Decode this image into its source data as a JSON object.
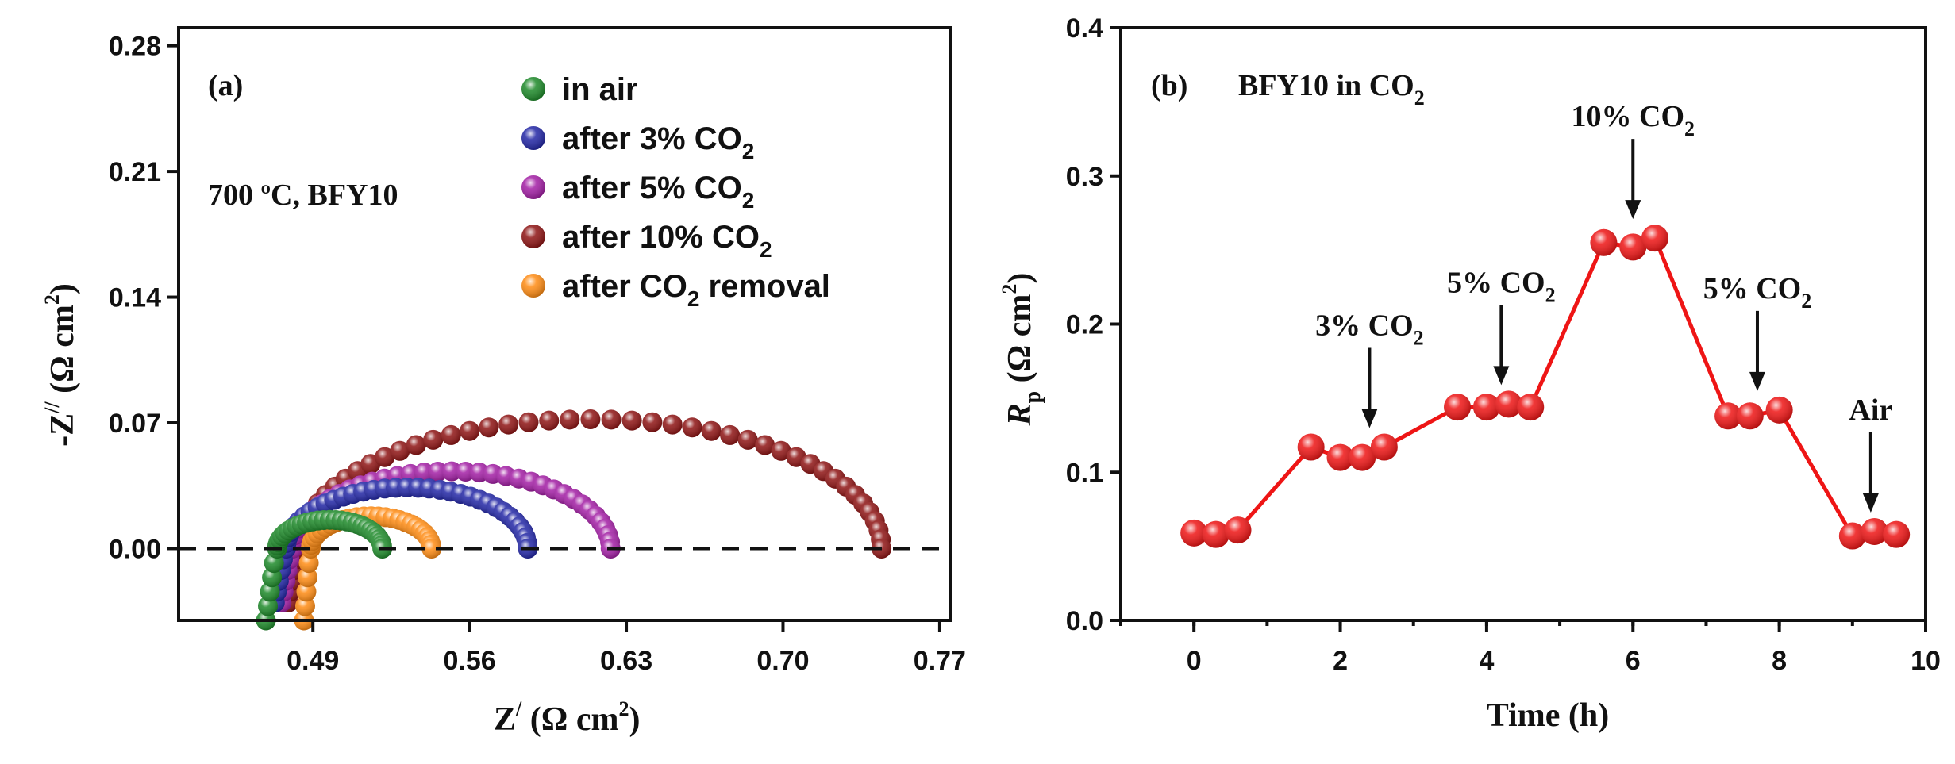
{
  "colors": {
    "in_air": "#1e8a2a",
    "after_3": "#2327a6",
    "after_5": "#a31fa5",
    "after_10": "#8e1414",
    "after_removal": "#ff8c14",
    "rp_points": "#ee1515",
    "rp_line": "#ee1515"
  },
  "chart_data": [
    {
      "type": "scatter",
      "panel_label": "(a)",
      "condition_label": "700 ºC, BFY10",
      "xlabel": "Z",
      "xlabel_superscript": "/",
      "xlabel_units": "(Ω cm",
      "xlabel_units_sup": "2",
      "xlabel_units_close": ")",
      "ylabel": "-Z",
      "ylabel_superscript": "//",
      "ylabel_units": "(Ω cm",
      "ylabel_units_sup": "2",
      "ylabel_units_close": ")",
      "xlim": [
        0.43,
        0.775
      ],
      "ylim": [
        -0.04,
        0.29
      ],
      "xticks": [
        "0.49",
        "0.56",
        "0.63",
        "0.70",
        "0.77"
      ],
      "yticks": [
        "0.00",
        "0.07",
        "0.14",
        "0.21",
        "0.28"
      ],
      "reference_line": {
        "y": 0.0,
        "style": "dashed"
      },
      "series": [
        {
          "name": "in air",
          "legend_text": "in air",
          "color_key": "in_air",
          "z_start": 0.474,
          "z_end": 0.521,
          "peak": 0.016,
          "tail": [
            0.469,
            -0.04
          ],
          "n": 28
        },
        {
          "name": "after 3% CO2",
          "legend_text": "after 3% CO",
          "legend_sub": "2",
          "color_key": "after_3",
          "z_start": 0.478,
          "z_end": 0.586,
          "peak": 0.034,
          "tail": [
            0.473,
            -0.03
          ],
          "n": 34
        },
        {
          "name": "after 5% CO2",
          "legend_text": "after 5% CO",
          "legend_sub": "2",
          "color_key": "after_5",
          "z_start": 0.481,
          "z_end": 0.623,
          "peak": 0.043,
          "tail": [
            0.476,
            -0.03
          ],
          "n": 36
        },
        {
          "name": "after 10% CO2",
          "legend_text": "after 10% CO",
          "legend_sub": "2",
          "color_key": "after_10",
          "z_start": 0.484,
          "z_end": 0.744,
          "peak": 0.072,
          "tail": [
            0.479,
            -0.03
          ],
          "n": 44
        },
        {
          "name": "after CO2 removal",
          "legend_text": "after  CO",
          "legend_sub": "2",
          "legend_tail": " removal",
          "color_key": "after_removal",
          "z_start": 0.489,
          "z_end": 0.543,
          "peak": 0.018,
          "tail": [
            0.486,
            -0.04
          ],
          "n": 26
        }
      ]
    },
    {
      "type": "line",
      "panel_label": "(b)",
      "title": "BFY10  in CO",
      "title_sub": "2",
      "xlabel": "Time (h)",
      "ylabel": "R",
      "ylabel_sub": "p",
      "ylabel_units": "(Ω cm",
      "ylabel_units_sup": "2",
      "ylabel_units_close": ")",
      "xlim": [
        -1,
        10
      ],
      "ylim": [
        0.0,
        0.4
      ],
      "xticks": [
        "0",
        "2",
        "4",
        "6",
        "8",
        "10"
      ],
      "yticks": [
        "0.0",
        "0.1",
        "0.2",
        "0.3",
        "0.4"
      ],
      "x": [
        0,
        0.3,
        0.6,
        1.6,
        2.0,
        2.3,
        2.6,
        3.6,
        4.0,
        4.3,
        4.6,
        5.6,
        6.0,
        6.3,
        7.3,
        7.6,
        8.0,
        9.0,
        9.3,
        9.6
      ],
      "values": [
        0.059,
        0.058,
        0.061,
        0.117,
        0.11,
        0.11,
        0.117,
        0.144,
        0.144,
        0.146,
        0.144,
        0.255,
        0.252,
        0.258,
        0.138,
        0.138,
        0.142,
        0.057,
        0.06,
        0.058
      ],
      "annotations": [
        {
          "text": "3% CO",
          "sub": "2",
          "x": 2.4,
          "y": 0.117
        },
        {
          "text": "5% CO",
          "sub": "2",
          "x": 4.2,
          "y": 0.146
        },
        {
          "text": "10% CO",
          "sub": "2",
          "x": 6.0,
          "y": 0.258
        },
        {
          "text": "5% CO",
          "sub": "2",
          "x": 7.7,
          "y": 0.142
        },
        {
          "text": "Air",
          "sub": "",
          "x": 9.25,
          "y": 0.06
        }
      ]
    }
  ]
}
